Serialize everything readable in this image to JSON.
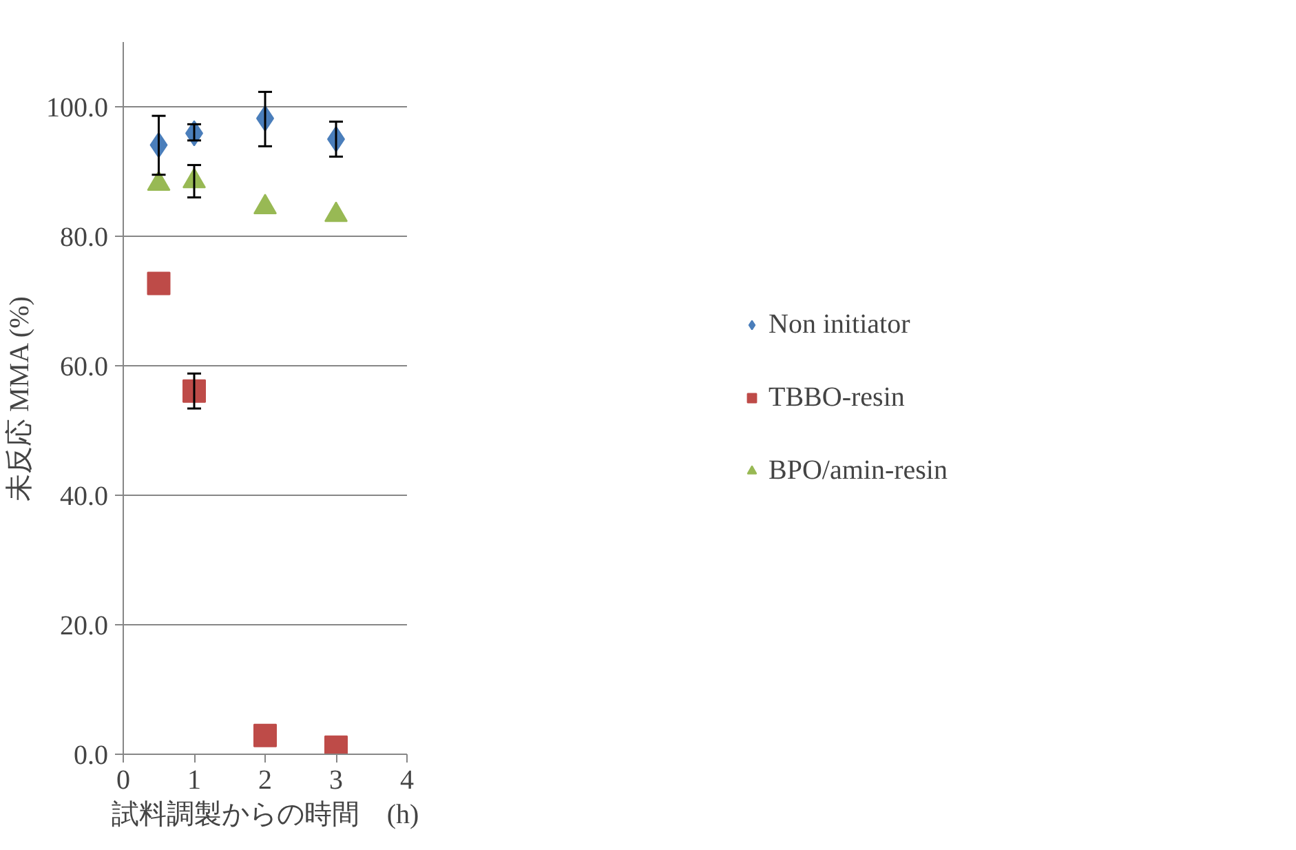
{
  "chart_data": {
    "type": "scatter",
    "xlabel": "試料調製からの時間　(h)",
    "ylabel": "未反応 MMA (%)",
    "x": [
      0.5,
      1,
      2,
      3
    ],
    "series": [
      {
        "name": "Non initiator",
        "color": "#4a7ebb",
        "marker": "diamond",
        "values": [
          94.1,
          95.9,
          98.2,
          95.0
        ],
        "errors": [
          [
            89.5,
            98.6
          ],
          [
            94.8,
            97.3
          ],
          [
            93.9,
            102.3
          ],
          [
            92.3,
            97.7
          ]
        ]
      },
      {
        "name": "TBBO-resin",
        "color": "#be4b48",
        "marker": "square",
        "values": [
          72.7,
          56.1,
          2.9,
          1.1
        ],
        "errors": [
          null,
          [
            53.4,
            58.8
          ],
          null,
          null
        ]
      },
      {
        "name": "BPO/amin-resin",
        "color": "#98b954",
        "marker": "triangle",
        "values": [
          88.1,
          88.5,
          84.5,
          83.3
        ],
        "errors": [
          null,
          [
            86.0,
            91.0
          ],
          null,
          null
        ]
      }
    ],
    "xlim": [
      0,
      4
    ],
    "ylim": [
      0,
      110
    ],
    "xticks": [
      0,
      1,
      2,
      3,
      4
    ],
    "yticks": [
      {
        "value": 0,
        "label": "0.0"
      },
      {
        "value": 20,
        "label": "20.0"
      },
      {
        "value": 40,
        "label": "40.0"
      },
      {
        "value": 60,
        "label": "60.0"
      },
      {
        "value": 80,
        "label": "80.0"
      },
      {
        "value": 100,
        "label": "100.0"
      }
    ],
    "grid": "y",
    "legend": "right"
  }
}
